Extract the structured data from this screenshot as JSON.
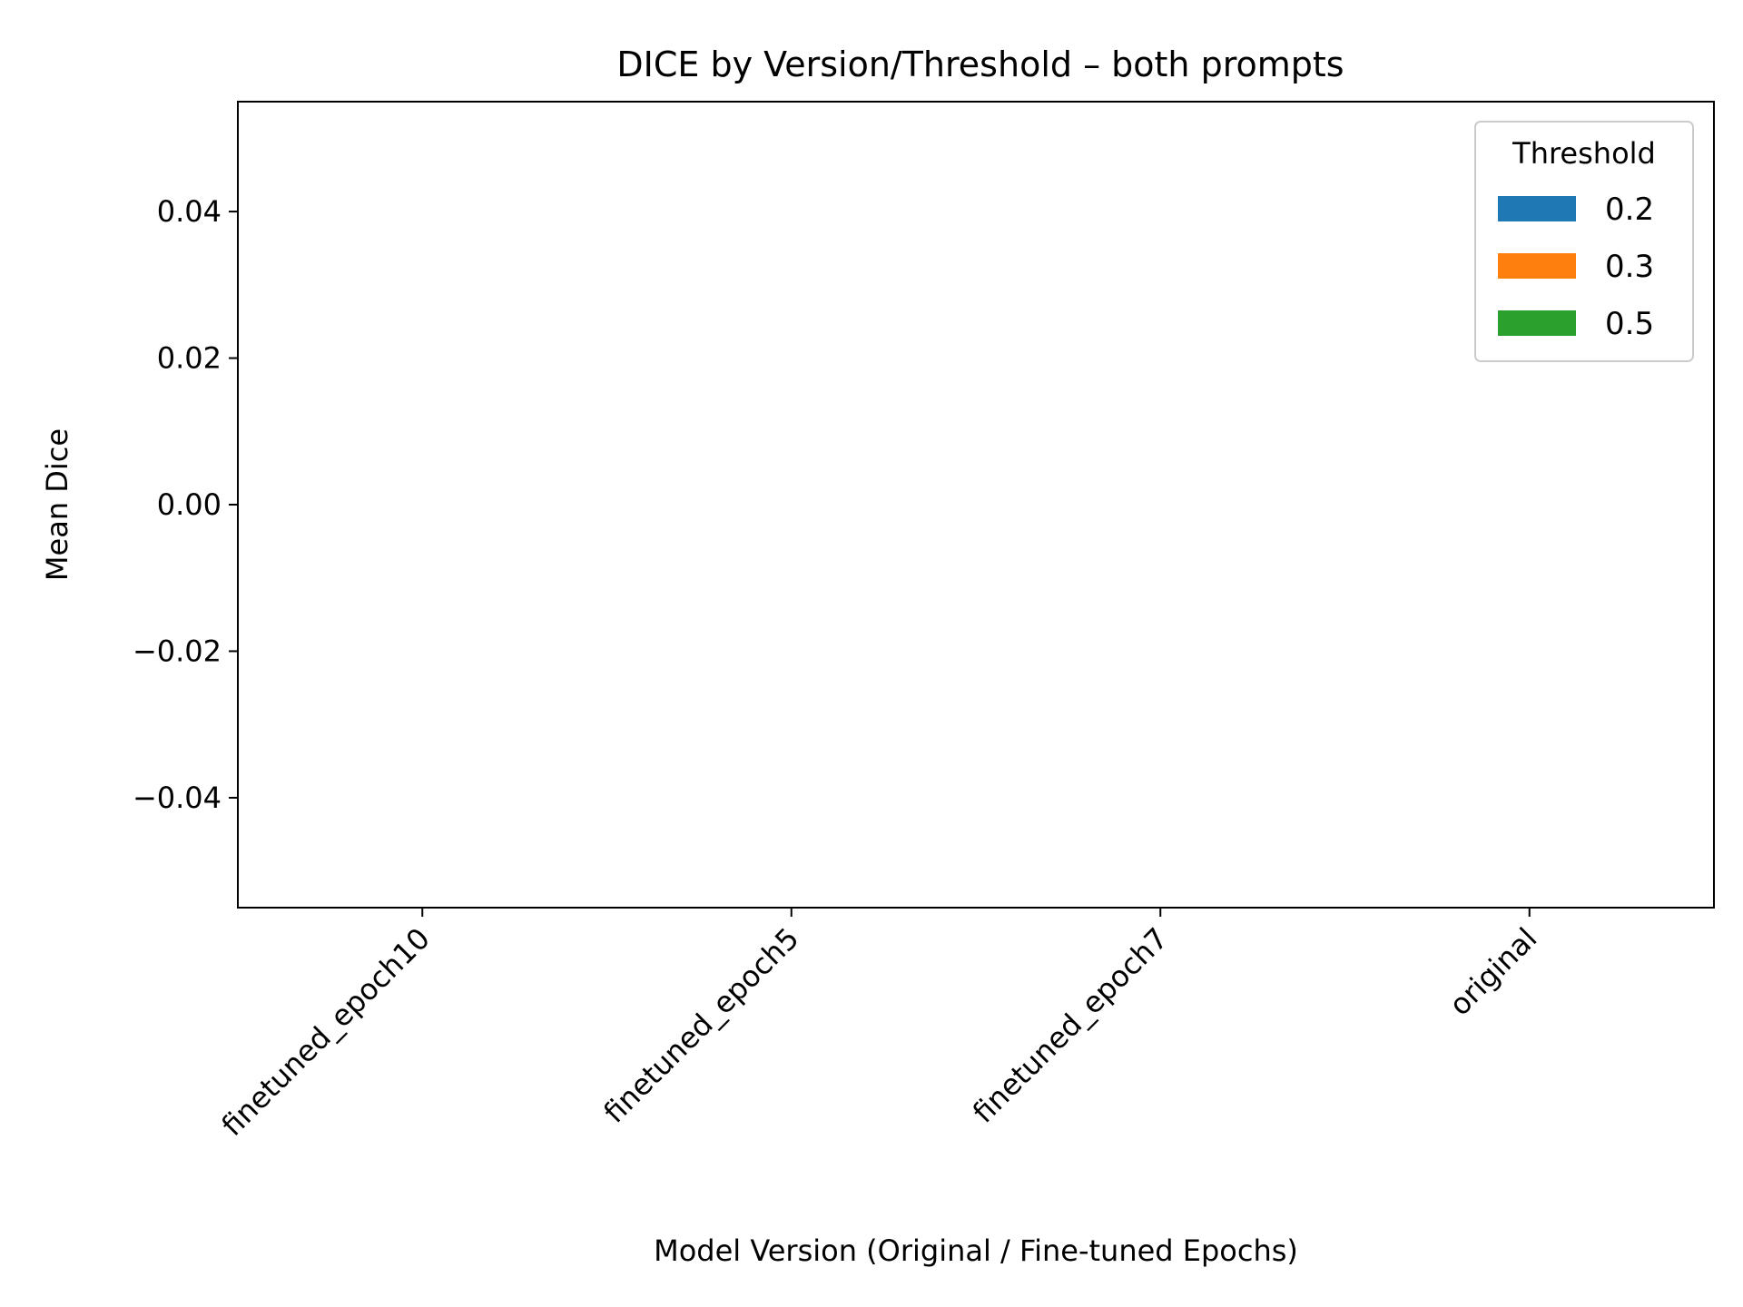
{
  "chart_data": {
    "type": "bar",
    "title": "DICE by Version/Threshold – both prompts",
    "xlabel": "Model Version (Original / Fine-tuned Epochs)",
    "ylabel": "Mean Dice",
    "categories": [
      "finetuned_epoch10",
      "finetuned_epoch5",
      "finetuned_epoch7",
      "original"
    ],
    "ylim": [
      -0.055,
      0.055
    ],
    "yticks": [
      0.04,
      0.02,
      0.0,
      -0.02,
      -0.04
    ],
    "ytick_labels": [
      "0.04",
      "0.02",
      "0.00",
      "−0.02",
      "−0.04"
    ],
    "grid": false,
    "legend": {
      "title": "Threshold",
      "placement": "top-right",
      "entries": [
        {
          "label": "0.2",
          "color": "#1f77b4"
        },
        {
          "label": "0.3",
          "color": "#ff7f0e"
        },
        {
          "label": "0.5",
          "color": "#2ca02c"
        }
      ]
    },
    "series": [
      {
        "name": "0.2",
        "color": "#1f77b4",
        "values": [
          null,
          null,
          null,
          null
        ]
      },
      {
        "name": "0.3",
        "color": "#ff7f0e",
        "values": [
          null,
          null,
          null,
          null
        ]
      },
      {
        "name": "0.5",
        "color": "#2ca02c",
        "values": [
          null,
          null,
          null,
          null
        ]
      }
    ]
  }
}
